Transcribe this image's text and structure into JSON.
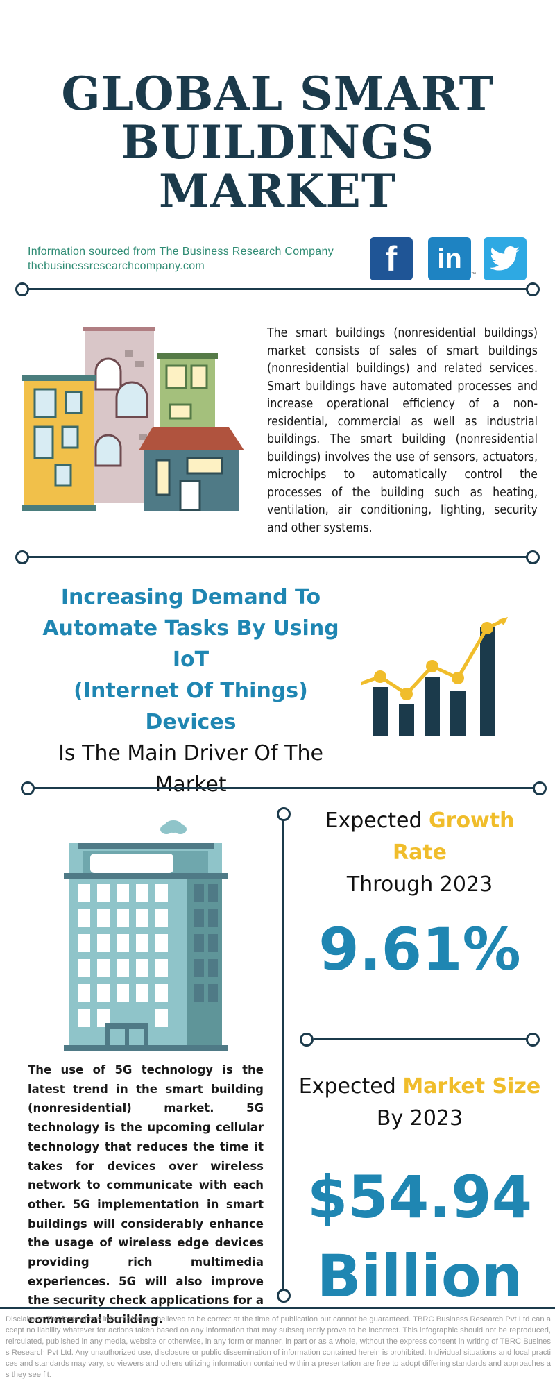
{
  "title": {
    "line1": "GLOBAL SMART",
    "line2": "BUILDINGS MARKET"
  },
  "source": {
    "line1": "Information sourced from The Business Research Company",
    "line2": "thebusinessresearchcompany.com"
  },
  "social": {
    "facebook_glyph": "f",
    "linkedin_glyph": "in",
    "trademark": "™"
  },
  "description": "The smart buildings (nonresidential buildings) market consists of sales of smart buildings (nonresidential buildings) and related services. Smart buildings have automated processes and increase operational efficiency of a non-residential, commercial as well as industrial buildings. The smart building (nonresidential buildings) involves the use of sensors, actuators, microchips to automatically control the processes of the building such as heating, ventilation, air conditioning, lighting, security and other systems.",
  "driver": {
    "highlight_line1": "Increasing Demand To",
    "highlight_line2": "Automate Tasks By Using IoT",
    "highlight_line3": "(Internet Of Things) Devices",
    "normal_line1": "Is The Main Driver Of The",
    "normal_line2": "Market"
  },
  "growth": {
    "label_prefix": "Expected ",
    "label_highlight": "Growth Rate",
    "label_suffix": "Through 2023",
    "value": "9.61%"
  },
  "market_size": {
    "label_prefix": "Expected ",
    "label_highlight": "Market Size",
    "label_suffix": "By 2023",
    "value_line1": "$54.94",
    "value_line2": "Billion"
  },
  "trend": "The use of 5G technology is the latest trend in the smart building (nonresidential) market. 5G technology is the upcoming cellular technology that reduces the time it takes for devices over wireless network to communicate with each other. 5G implementation in smart buildings will considerably enhance the usage of wireless edge devices providing rich multimedia experiences. 5G will also improve the security check applications for a commercial building.",
  "disclaimer": "Disclaimer: The facts of this infographic are believed to be correct at the time of publication but cannot be guaranteed. TBRC Business Research Pvt Ltd can accept no liability whatever for actions taken based on any information that may subsequently prove to be incorrect. This infographic should not be reproduced, reirculated, published in any media, website or otherwise, in any form or manner, in part or as a whole, without the express consent in writing of TBRC Business Research Pvt Ltd. Any unauthorized use, disclosure or public dissemination of information contained herein is prohibited. Individual situations and local practices and standards may vary, so viewers and others utilizing information contained within a presentation are free to adopt differing standards and approaches as they see fit.",
  "colors": {
    "navy": "#1b3a4b",
    "blue": "#1f86b2",
    "yellow": "#f0bd2b",
    "green_text": "#2e8b73"
  },
  "icons": [
    "facebook-icon",
    "linkedin-icon",
    "twitter-icon",
    "houses-illustration",
    "growth-chart-icon",
    "office-tower-illustration",
    "cloud-icon"
  ]
}
